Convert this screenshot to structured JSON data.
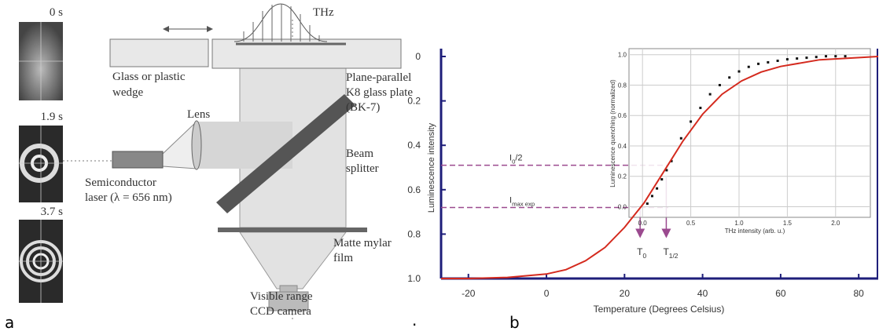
{
  "panel_a": {
    "frames": [
      "0 s",
      "1.9 s",
      "3.7 s"
    ],
    "labels": {
      "thz": "THz",
      "wedge": [
        "Glass or plastic",
        "wedge"
      ],
      "plate": [
        "Plane-parallel",
        "K8 glass plate",
        "(BK-7)"
      ],
      "lens": "Lens",
      "splitter": [
        "Beam",
        "splitter"
      ],
      "laser": [
        "Semiconductor",
        "laser (λ = 656 nm)"
      ],
      "film": [
        "Matte mylar",
        "film"
      ],
      "camera": [
        "Visible range",
        "CCD camera"
      ]
    }
  },
  "panel_labels": [
    "a",
    ".",
    "b"
  ],
  "chart_data": [
    {
      "type": "line",
      "x_label": "Temperature (Degrees Celsius)",
      "y_label": "Luminescence intensity",
      "x": [
        -27,
        -20,
        -10,
        0,
        5,
        10,
        15,
        20,
        25,
        30,
        35,
        40,
        45,
        50,
        55,
        60,
        70,
        85
      ],
      "series": [
        {
          "color": "#d42a1e",
          "values": [
            1,
            1,
            0.995,
            0.98,
            0.96,
            0.92,
            0.86,
            0.77,
            0.66,
            0.52,
            0.38,
            0.26,
            0.17,
            0.11,
            0.07,
            0.045,
            0.015,
            0
          ]
        }
      ],
      "xlim": [
        -27,
        85
      ],
      "xticks": [
        -20,
        0,
        20,
        40,
        60,
        80
      ],
      "ylim": [
        1,
        0
      ],
      "yticks": [
        0,
        0.2,
        0.4,
        0.6,
        0.8,
        {
          "value": 1,
          "label": "1.0"
        }
      ],
      "axis_color": "#1e1e7a",
      "reference_lines": [
        {
          "text": "I",
          "sub": "0",
          "suffix": "/2",
          "y": 0.49,
          "color": "#9b4a8f"
        },
        {
          "text": "I",
          "sub": "max exp",
          "y": 0.68,
          "color": "#9b4a8f"
        }
      ],
      "markers": [
        {
          "text": "T",
          "sub": "0",
          "x": 24,
          "color": "#9b4a8f"
        },
        {
          "text": "T",
          "sub": "1/2",
          "x": 30.7,
          "color": "#9b4a8f"
        }
      ]
    },
    {
      "type": "scatter",
      "x_label": "THz intensity (arb. u.)",
      "y_label": "Luminescence quenching (normalized)",
      "x": [
        0.05,
        0.1,
        0.15,
        0.2,
        0.25,
        0.3,
        0.4,
        0.5,
        0.6,
        0.7,
        0.8,
        0.9,
        1.0,
        1.1,
        1.2,
        1.3,
        1.4,
        1.5,
        1.6,
        1.7,
        1.8,
        1.9,
        2.0,
        2.1
      ],
      "series": [
        {
          "color": "#111111",
          "values": [
            0.02,
            0.07,
            0.12,
            0.18,
            0.24,
            0.3,
            0.45,
            0.56,
            0.65,
            0.74,
            0.8,
            0.85,
            0.89,
            0.92,
            0.94,
            0.95,
            0.96,
            0.97,
            0.975,
            0.98,
            0.985,
            0.99,
            0.99,
            0.99
          ]
        }
      ],
      "xlim": [
        -0.14,
        2.36
      ],
      "xticks": [
        {
          "value": 0,
          "label": "0.0"
        },
        0.5,
        {
          "value": 1,
          "label": "1.0"
        },
        1.5,
        {
          "value": 2,
          "label": "2.0"
        }
      ],
      "ylim": [
        -0.07,
        1.04
      ],
      "yticks": [
        {
          "value": 0,
          "label": "0.0"
        },
        0.2,
        0.4,
        0.6,
        0.8,
        {
          "value": 1,
          "label": "1.0"
        }
      ],
      "grid": true
    }
  ]
}
